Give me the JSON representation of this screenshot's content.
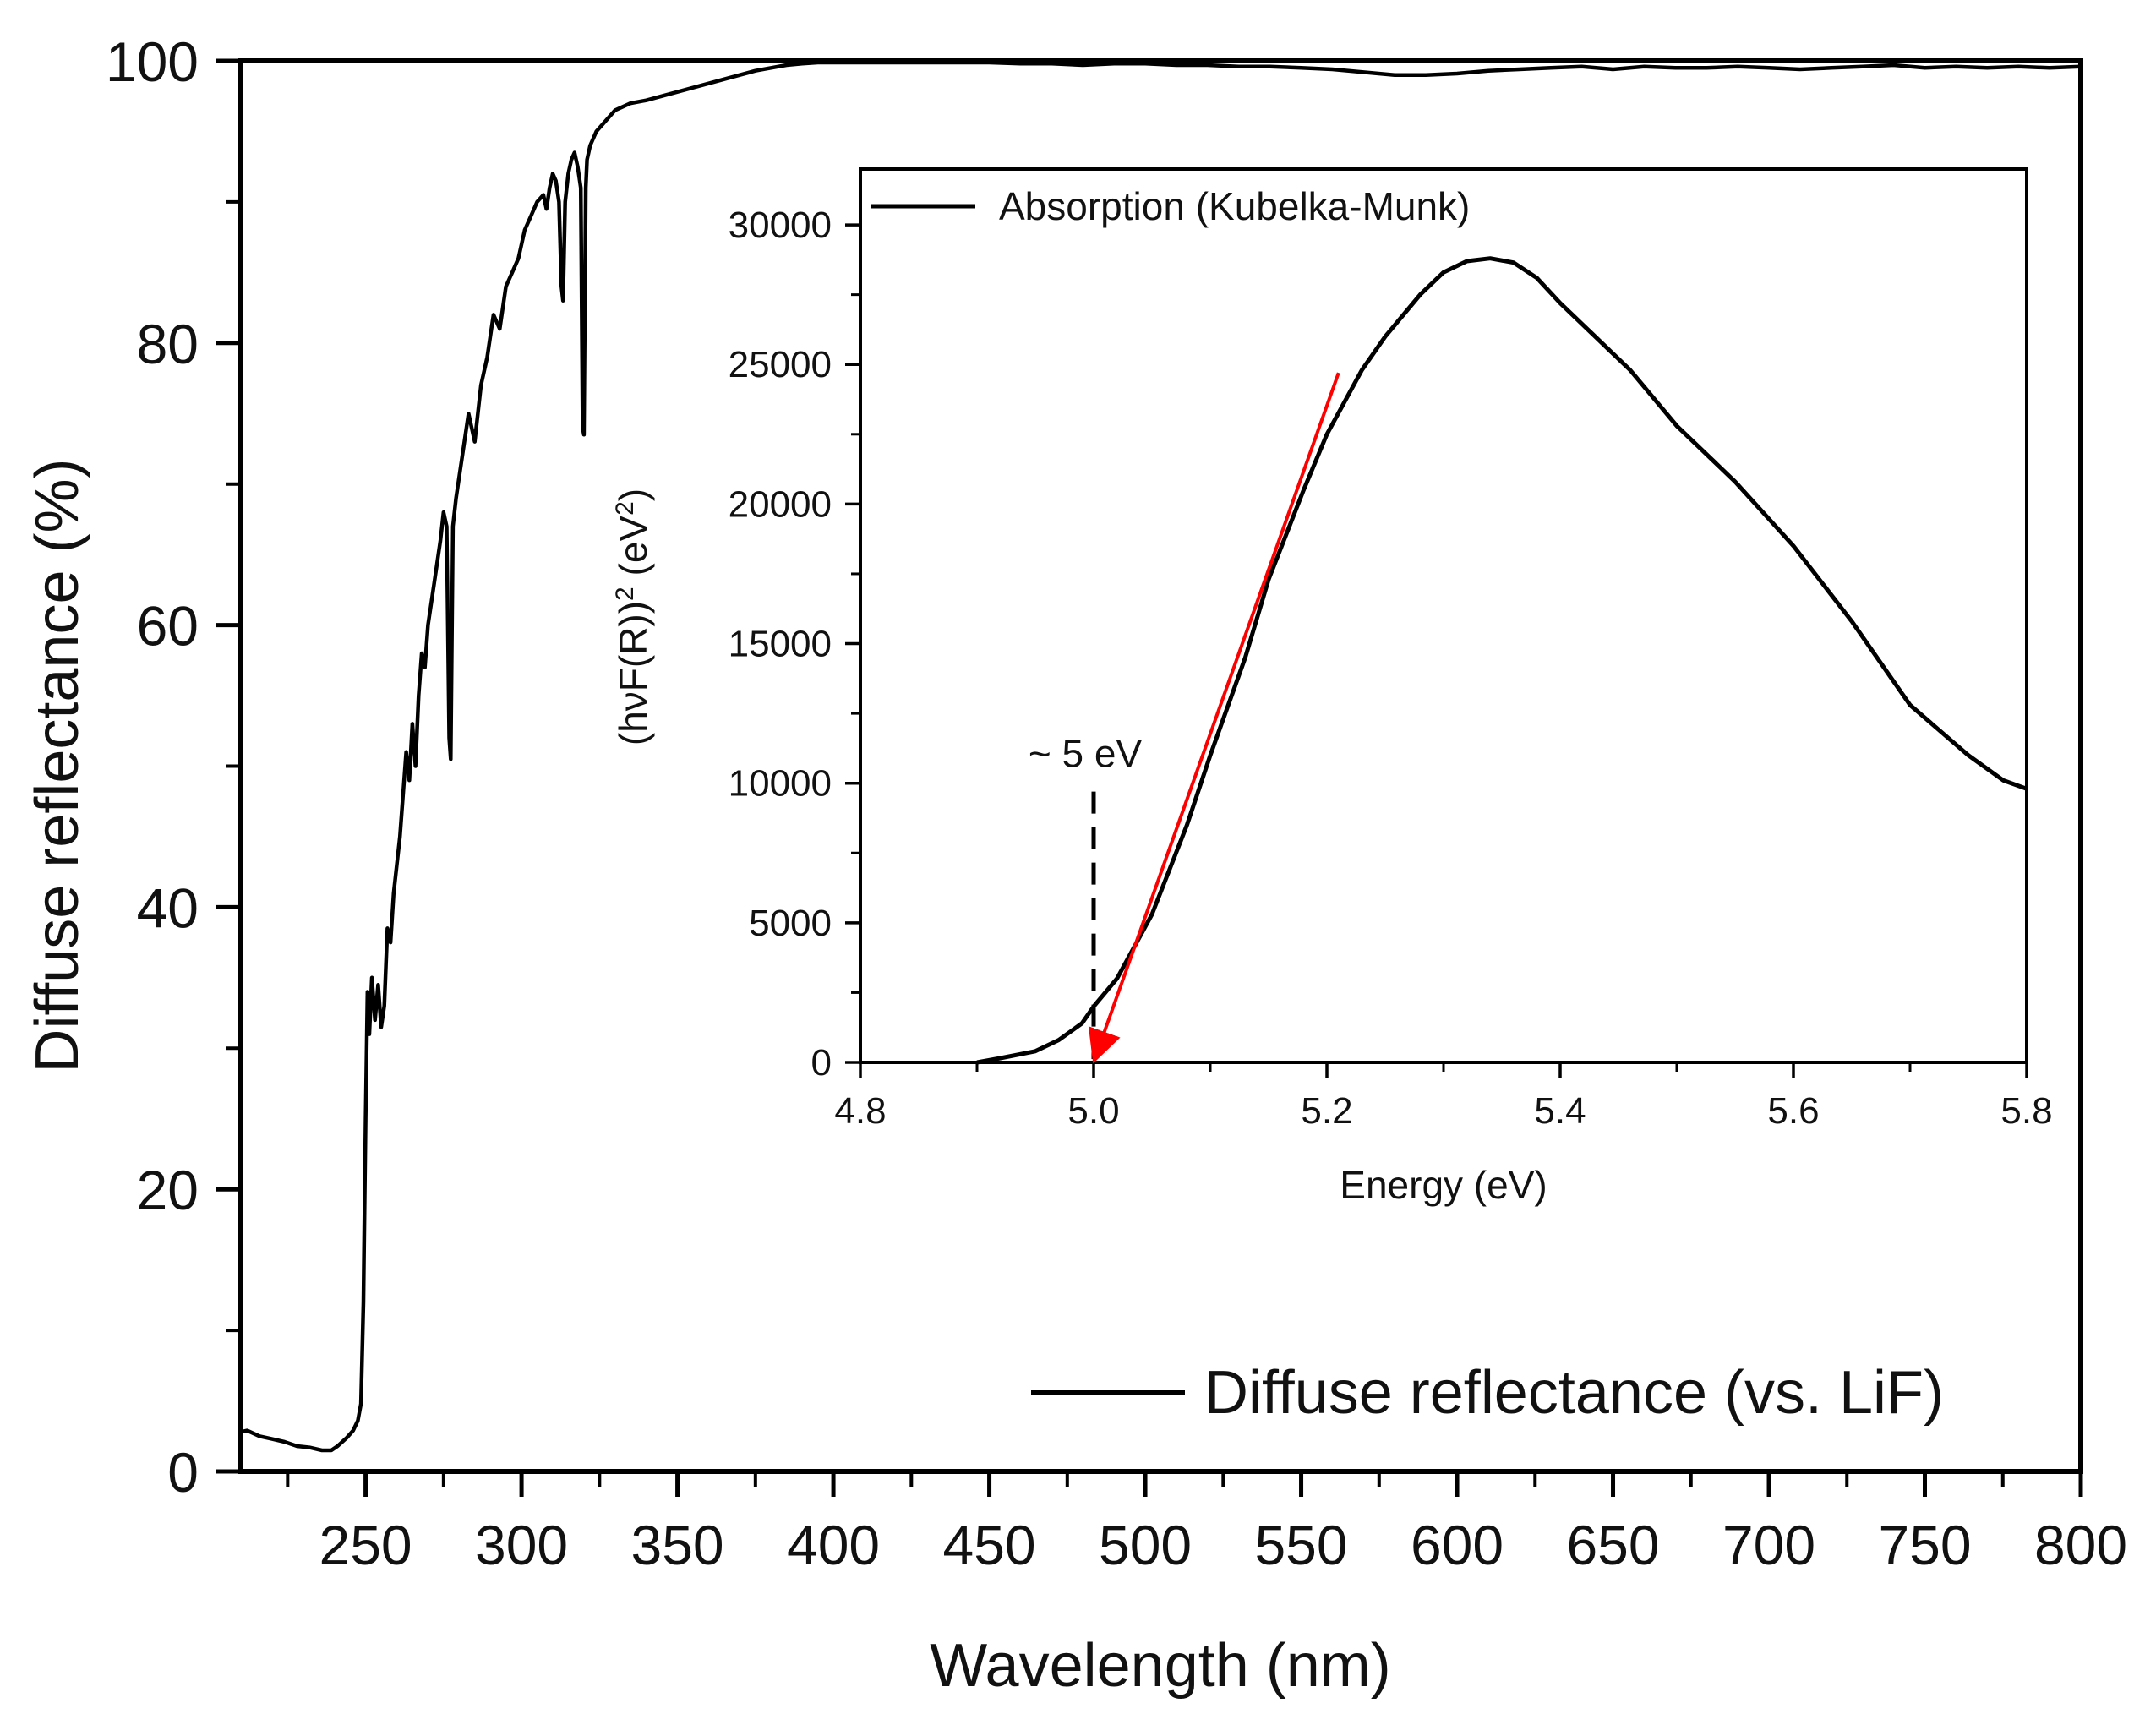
{
  "chart_data": [
    {
      "type": "line",
      "role": "main",
      "xlabel": "Wavelength (nm)",
      "ylabel": "Diffuse reflectance (%)",
      "xlim": [
        210,
        800
      ],
      "ylim": [
        0,
        100
      ],
      "xticks": [
        "250",
        "300",
        "350",
        "400",
        "450",
        "500",
        "550",
        "600",
        "650",
        "700",
        "750",
        "800"
      ],
      "xtick_values": [
        250,
        300,
        350,
        400,
        450,
        500,
        550,
        600,
        650,
        700,
        750,
        800
      ],
      "yticks": [
        "0",
        "20",
        "40",
        "60",
        "80",
        "100"
      ],
      "ytick_values": [
        0,
        20,
        40,
        60,
        80,
        100
      ],
      "legend": "top-right? no: bottom-right",
      "legend_position": "bottom-right",
      "series": [
        {
          "name": "Diffuse reflectance (vs. LiF)",
          "color": "#000000",
          "points": [
            [
              210,
              2.8
            ],
            [
              212,
              2.9
            ],
            [
              216,
              2.5
            ],
            [
              220,
              2.3
            ],
            [
              224,
              2.1
            ],
            [
              228,
              1.8
            ],
            [
              232,
              1.7
            ],
            [
              236,
              1.5
            ],
            [
              239,
              1.5
            ],
            [
              241,
              1.8
            ],
            [
              244,
              2.4
            ],
            [
              246,
              2.9
            ],
            [
              247.5,
              3.6
            ],
            [
              248.5,
              4.8
            ],
            [
              249.3,
              12
            ],
            [
              250,
              25
            ],
            [
              250.6,
              34
            ],
            [
              251.2,
              31
            ],
            [
              252,
              35
            ],
            [
              253,
              32
            ],
            [
              254,
              34.5
            ],
            [
              255,
              31.5
            ],
            [
              256,
              33
            ],
            [
              257,
              38.5
            ],
            [
              258,
              37.5
            ],
            [
              259,
              41
            ],
            [
              260,
              43
            ],
            [
              261,
              45
            ],
            [
              262,
              48
            ],
            [
              263,
              51
            ],
            [
              264,
              49
            ],
            [
              265,
              53
            ],
            [
              266,
              50
            ],
            [
              267,
              55
            ],
            [
              268,
              58
            ],
            [
              269,
              57
            ],
            [
              270,
              60
            ],
            [
              272,
              63
            ],
            [
              274,
              66
            ],
            [
              275,
              68
            ],
            [
              276,
              67
            ],
            [
              276.8,
              52
            ],
            [
              277.3,
              50.5
            ],
            [
              278,
              67
            ],
            [
              279,
              69
            ],
            [
              281,
              72
            ],
            [
              283,
              75
            ],
            [
              285,
              73
            ],
            [
              287,
              77
            ],
            [
              289,
              79
            ],
            [
              291,
              82
            ],
            [
              293,
              81
            ],
            [
              295,
              84
            ],
            [
              297,
              85
            ],
            [
              299,
              86
            ],
            [
              301,
              88
            ],
            [
              303,
              89
            ],
            [
              305,
              90
            ],
            [
              307,
              90.5
            ],
            [
              308,
              89.5
            ],
            [
              309,
              91
            ],
            [
              310,
              92
            ],
            [
              311,
              91.5
            ],
            [
              312,
              90
            ],
            [
              312.8,
              84
            ],
            [
              313.3,
              83
            ],
            [
              314,
              90
            ],
            [
              315,
              92
            ],
            [
              316,
              93
            ],
            [
              317,
              93.5
            ],
            [
              318,
              92.5
            ],
            [
              319,
              91
            ],
            [
              319.6,
              74
            ],
            [
              320,
              73.5
            ],
            [
              320.6,
              91
            ],
            [
              321,
              93
            ],
            [
              322,
              94
            ],
            [
              324,
              95
            ],
            [
              326,
              95.5
            ],
            [
              328,
              96
            ],
            [
              330,
              96.5
            ],
            [
              335,
              97
            ],
            [
              340,
              97.2
            ],
            [
              345,
              97.5
            ],
            [
              350,
              97.8
            ],
            [
              355,
              98.1
            ],
            [
              360,
              98.4
            ],
            [
              365,
              98.7
            ],
            [
              370,
              99
            ],
            [
              375,
              99.3
            ],
            [
              380,
              99.5
            ],
            [
              385,
              99.7
            ],
            [
              390,
              99.8
            ],
            [
              395,
              99.9
            ],
            [
              400,
              100
            ],
            [
              410,
              100
            ],
            [
              420,
              99.9
            ],
            [
              430,
              100
            ],
            [
              440,
              99.9
            ],
            [
              450,
              100
            ],
            [
              460,
              99.8
            ],
            [
              470,
              99.8
            ],
            [
              480,
              99.7
            ],
            [
              490,
              99.8
            ],
            [
              500,
              99.8
            ],
            [
              510,
              99.7
            ],
            [
              520,
              99.7
            ],
            [
              530,
              99.6
            ],
            [
              540,
              99.6
            ],
            [
              550,
              99.5
            ],
            [
              560,
              99.4
            ],
            [
              570,
              99.2
            ],
            [
              580,
              99
            ],
            [
              590,
              99
            ],
            [
              600,
              99.1
            ],
            [
              610,
              99.3
            ],
            [
              620,
              99.4
            ],
            [
              630,
              99.5
            ],
            [
              640,
              99.6
            ],
            [
              650,
              99.4
            ],
            [
              660,
              99.6
            ],
            [
              670,
              99.5
            ],
            [
              680,
              99.5
            ],
            [
              690,
              99.6
            ],
            [
              700,
              99.5
            ],
            [
              710,
              99.4
            ],
            [
              720,
              99.5
            ],
            [
              730,
              99.6
            ],
            [
              740,
              99.7
            ],
            [
              750,
              99.5
            ],
            [
              760,
              99.6
            ],
            [
              770,
              99.5
            ],
            [
              780,
              99.6
            ],
            [
              790,
              99.5
            ],
            [
              800,
              99.6
            ]
          ]
        }
      ]
    },
    {
      "type": "line",
      "role": "inset",
      "xlabel": "Energy (eV)",
      "ylabel": "(hνF(R))",
      "ylabel_sup": "2",
      "ylabel_unit": " (eV",
      "ylabel_unit_sup": "2",
      "ylabel_close": ")",
      "xlim": [
        4.8,
        5.8
      ],
      "ylim": [
        0,
        32000
      ],
      "xticks": [
        "4.8",
        "5.0",
        "5.2",
        "5.4",
        "5.6",
        "5.8"
      ],
      "xtick_values": [
        4.8,
        5.0,
        5.2,
        5.4,
        5.6,
        5.8
      ],
      "yticks": [
        "0",
        "5000",
        "10000",
        "15000",
        "20000",
        "25000",
        "30000"
      ],
      "ytick_values": [
        0,
        5000,
        10000,
        15000,
        20000,
        25000,
        30000
      ],
      "legend_position": "top-left",
      "series": [
        {
          "name": "Absorption (Kubelka-Munk)",
          "color": "#000000",
          "points": [
            [
              4.9,
              0
            ],
            [
              4.92,
              150
            ],
            [
              4.95,
              400
            ],
            [
              4.97,
              800
            ],
            [
              4.99,
              1400
            ],
            [
              5.0,
              2000
            ],
            [
              5.02,
              3000
            ],
            [
              5.05,
              5300
            ],
            [
              5.08,
              8500
            ],
            [
              5.1,
              11000
            ],
            [
              5.13,
              14500
            ],
            [
              5.15,
              17300
            ],
            [
              5.18,
              20500
            ],
            [
              5.2,
              22500
            ],
            [
              5.23,
              24800
            ],
            [
              5.25,
              26000
            ],
            [
              5.28,
              27500
            ],
            [
              5.3,
              28300
            ],
            [
              5.32,
              28700
            ],
            [
              5.34,
              28800
            ],
            [
              5.36,
              28650
            ],
            [
              5.38,
              28100
            ],
            [
              5.4,
              27200
            ],
            [
              5.43,
              26000
            ],
            [
              5.46,
              24800
            ],
            [
              5.5,
              22800
            ],
            [
              5.55,
              20800
            ],
            [
              5.6,
              18500
            ],
            [
              5.65,
              15800
            ],
            [
              5.7,
              12800
            ],
            [
              5.75,
              11000
            ],
            [
              5.78,
              10100
            ],
            [
              5.8,
              9800
            ]
          ]
        }
      ],
      "annotations": [
        {
          "text": "~ 5 eV",
          "x": 5.0,
          "y": 11000
        }
      ],
      "fit_line": {
        "color": "#ff0000",
        "from": [
          5.21,
          24700
        ],
        "to": [
          5.0,
          0
        ]
      },
      "dashed_marker": {
        "x": 5.0,
        "from_y": 9700,
        "to_y": 0
      }
    }
  ]
}
